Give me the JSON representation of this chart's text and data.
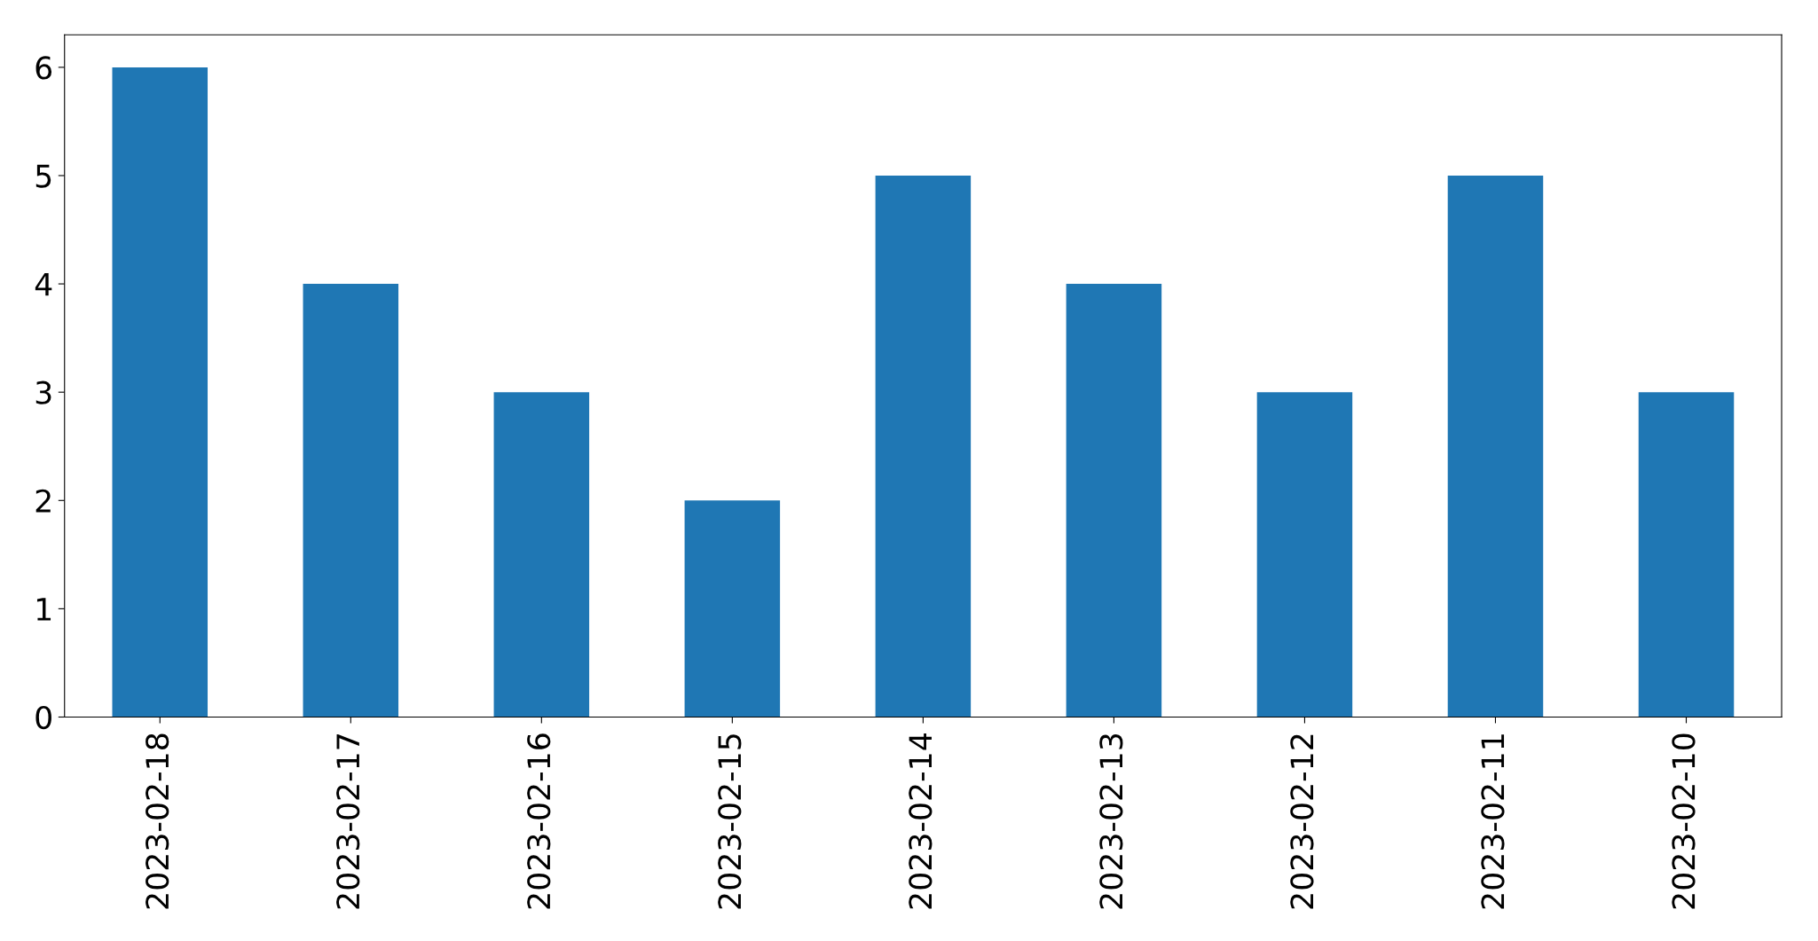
{
  "chart_data": {
    "type": "bar",
    "categories": [
      "2023-02-18",
      "2023-02-17",
      "2023-02-16",
      "2023-02-15",
      "2023-02-14",
      "2023-02-13",
      "2023-02-12",
      "2023-02-11",
      "2023-02-10"
    ],
    "values": [
      6,
      4,
      3,
      2,
      5,
      4,
      3,
      5,
      3
    ],
    "color": "#1f77b4",
    "ylim": [
      0,
      6.3
    ],
    "yticks": [
      0,
      1,
      2,
      3,
      4,
      5,
      6
    ],
    "grid": false
  }
}
